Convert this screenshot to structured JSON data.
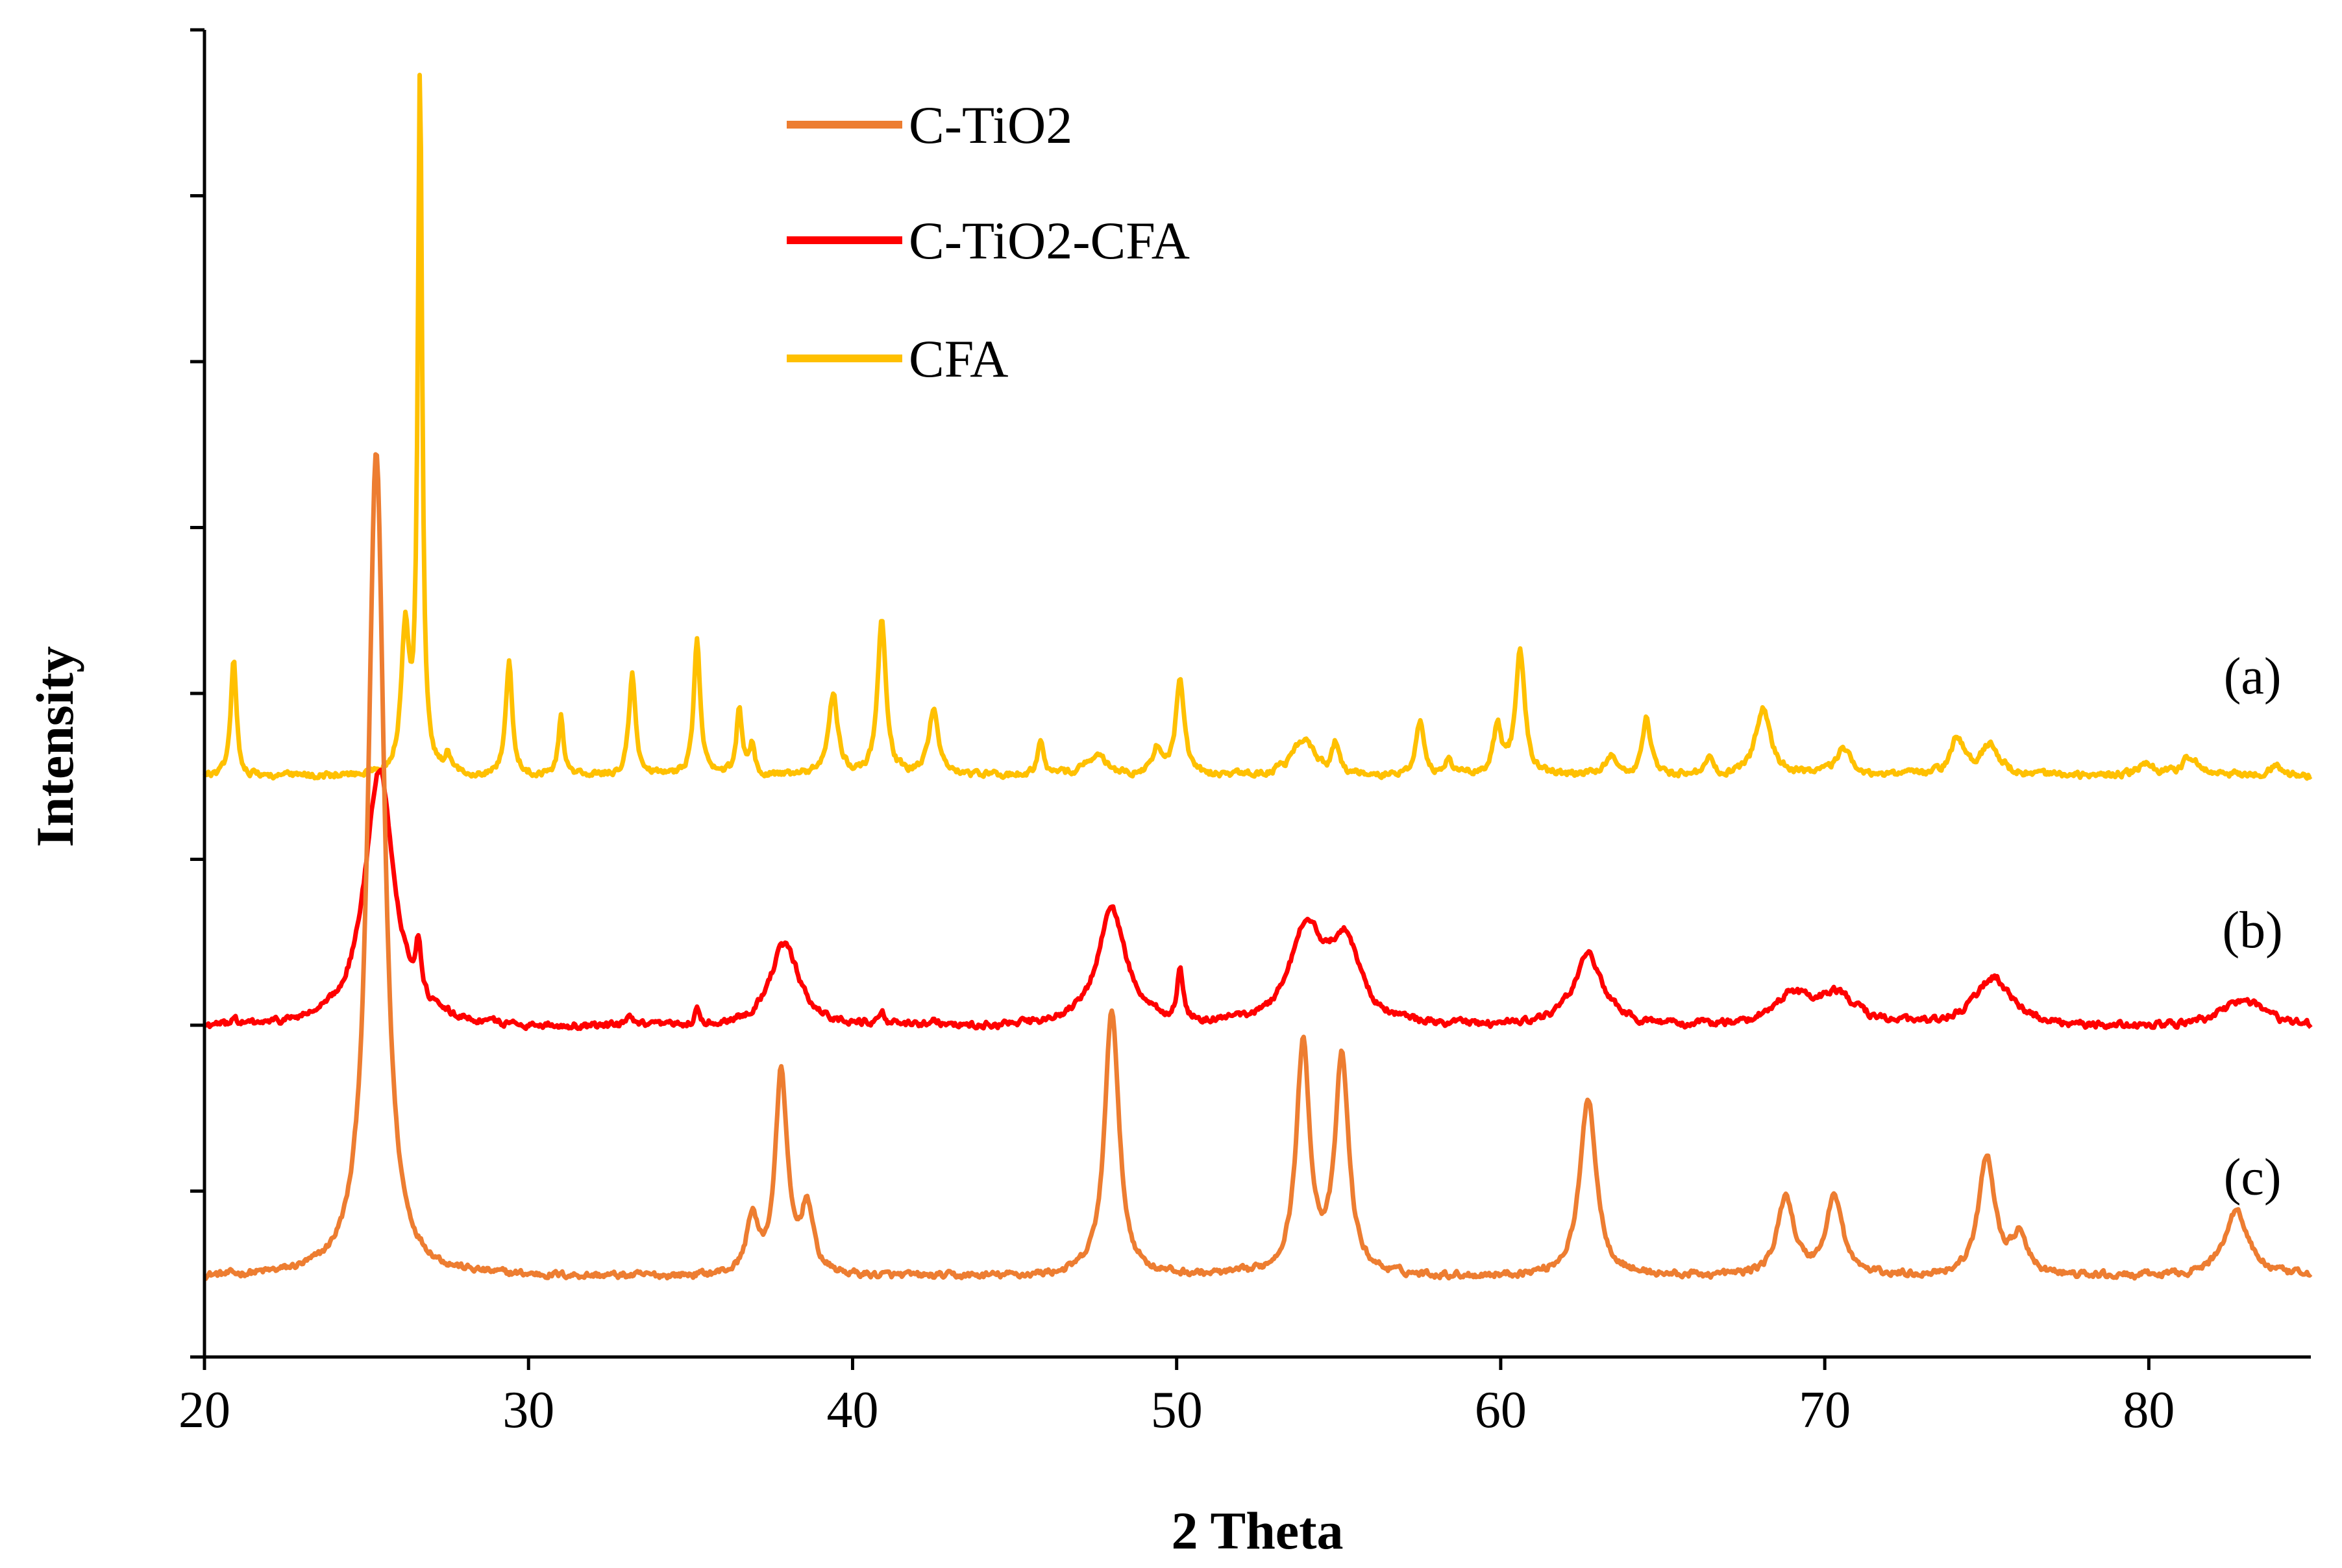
{
  "chart_data": {
    "type": "line",
    "title": "",
    "xlabel": "2 Theta",
    "ylabel": "Intensity",
    "xlim": [
      20,
      85
    ],
    "ylim": [
      0,
      8
    ],
    "x_ticks": [
      20,
      30,
      40,
      50,
      60,
      70,
      80
    ],
    "y_ticks_labeled": false,
    "legend_position": "top-center",
    "colors": {
      "c_tio2": "#ED7D31",
      "c_tio2_cfa": "#FF0000",
      "cfa": "#FFC000",
      "axis": "#000000"
    },
    "series": [
      {
        "key": "c_tio2",
        "name": "C-TiO2",
        "annotation": "(c)",
        "annotation_x": 83.2,
        "annotation_y": 0.98,
        "baseline": 0.48,
        "peaks": [
          {
            "x": 25.3,
            "height": 4.98,
            "width": 0.3
          },
          {
            "x": 36.9,
            "height": 0.34,
            "width": 0.2
          },
          {
            "x": 37.8,
            "height": 1.22,
            "width": 0.22
          },
          {
            "x": 38.6,
            "height": 0.4,
            "width": 0.22
          },
          {
            "x": 48.0,
            "height": 1.62,
            "width": 0.26
          },
          {
            "x": 53.9,
            "height": 1.38,
            "width": 0.25
          },
          {
            "x": 55.1,
            "height": 1.3,
            "width": 0.25
          },
          {
            "x": 62.7,
            "height": 1.08,
            "width": 0.3
          },
          {
            "x": 68.8,
            "height": 0.48,
            "width": 0.3
          },
          {
            "x": 70.3,
            "height": 0.48,
            "width": 0.3
          },
          {
            "x": 75.0,
            "height": 0.72,
            "width": 0.3
          },
          {
            "x": 76.0,
            "height": 0.22,
            "width": 0.3
          },
          {
            "x": 82.7,
            "height": 0.4,
            "width": 0.45
          }
        ]
      },
      {
        "key": "c_tio2_cfa",
        "name": "C-TiO2-CFA",
        "annotation": "(b)",
        "annotation_x": 83.2,
        "annotation_y": 2.47,
        "baseline": 1.98,
        "peaks": [
          {
            "x": 20.9,
            "height": 0.05,
            "width": 0.1
          },
          {
            "x": 25.4,
            "height": 1.55,
            "width": 0.55
          },
          {
            "x": 26.6,
            "height": 0.3,
            "width": 0.1
          },
          {
            "x": 33.1,
            "height": 0.06,
            "width": 0.1
          },
          {
            "x": 35.2,
            "height": 0.08,
            "width": 0.1
          },
          {
            "x": 37.9,
            "height": 0.5,
            "width": 0.55
          },
          {
            "x": 40.9,
            "height": 0.1,
            "width": 0.1
          },
          {
            "x": 42.5,
            "height": 0.04,
            "width": 0.2
          },
          {
            "x": 48.0,
            "height": 0.7,
            "width": 0.55
          },
          {
            "x": 50.1,
            "height": 0.3,
            "width": 0.1
          },
          {
            "x": 54.0,
            "height": 0.58,
            "width": 0.6
          },
          {
            "x": 55.2,
            "height": 0.48,
            "width": 0.55
          },
          {
            "x": 62.7,
            "height": 0.43,
            "width": 0.55
          },
          {
            "x": 69.0,
            "height": 0.18,
            "width": 0.7
          },
          {
            "x": 70.4,
            "height": 0.18,
            "width": 0.7
          },
          {
            "x": 75.2,
            "height": 0.3,
            "width": 0.7
          },
          {
            "x": 82.9,
            "height": 0.17,
            "width": 0.8
          }
        ]
      },
      {
        "key": "cfa",
        "name": "CFA",
        "annotation": "(a)",
        "annotation_x": 83.2,
        "annotation_y": 4.0,
        "baseline": 3.5,
        "peaks": [
          {
            "x": 20.9,
            "height": 0.72,
            "width": 0.1
          },
          {
            "x": 26.2,
            "height": 0.85,
            "width": 0.15
          },
          {
            "x": 26.65,
            "height": 4.2,
            "width": 0.08
          },
          {
            "x": 27.5,
            "height": 0.1,
            "width": 0.1
          },
          {
            "x": 29.4,
            "height": 0.68,
            "width": 0.12
          },
          {
            "x": 31.0,
            "height": 0.35,
            "width": 0.1
          },
          {
            "x": 33.2,
            "height": 0.62,
            "width": 0.12
          },
          {
            "x": 35.2,
            "height": 0.8,
            "width": 0.12
          },
          {
            "x": 36.5,
            "height": 0.4,
            "width": 0.1
          },
          {
            "x": 36.9,
            "height": 0.18,
            "width": 0.1
          },
          {
            "x": 39.4,
            "height": 0.48,
            "width": 0.18
          },
          {
            "x": 40.9,
            "height": 0.95,
            "width": 0.15
          },
          {
            "x": 42.5,
            "height": 0.4,
            "width": 0.18
          },
          {
            "x": 45.8,
            "height": 0.18,
            "width": 0.12
          },
          {
            "x": 47.5,
            "height": 0.12,
            "width": 0.4
          },
          {
            "x": 49.4,
            "height": 0.16,
            "width": 0.15
          },
          {
            "x": 50.1,
            "height": 0.58,
            "width": 0.15
          },
          {
            "x": 53.9,
            "height": 0.22,
            "width": 0.4
          },
          {
            "x": 54.9,
            "height": 0.18,
            "width": 0.12
          },
          {
            "x": 57.5,
            "height": 0.33,
            "width": 0.15
          },
          {
            "x": 58.4,
            "height": 0.1,
            "width": 0.12
          },
          {
            "x": 59.9,
            "height": 0.28,
            "width": 0.15
          },
          {
            "x": 60.6,
            "height": 0.75,
            "width": 0.17
          },
          {
            "x": 63.4,
            "height": 0.12,
            "width": 0.2
          },
          {
            "x": 64.5,
            "height": 0.35,
            "width": 0.15
          },
          {
            "x": 66.4,
            "height": 0.1,
            "width": 0.15
          },
          {
            "x": 68.1,
            "height": 0.4,
            "width": 0.28
          },
          {
            "x": 70.6,
            "height": 0.16,
            "width": 0.3
          },
          {
            "x": 74.1,
            "height": 0.22,
            "width": 0.25
          },
          {
            "x": 75.1,
            "height": 0.18,
            "width": 0.35
          },
          {
            "x": 79.9,
            "height": 0.08,
            "width": 0.3
          },
          {
            "x": 81.3,
            "height": 0.12,
            "width": 0.3
          },
          {
            "x": 83.9,
            "height": 0.06,
            "width": 0.25
          }
        ]
      }
    ]
  }
}
